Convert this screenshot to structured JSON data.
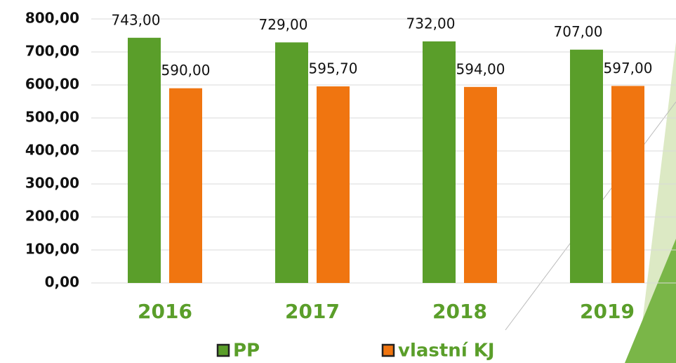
{
  "chart_data": {
    "type": "bar",
    "categories": [
      "2016",
      "2017",
      "2018",
      "2019"
    ],
    "series": [
      {
        "name": "PP",
        "color": "#5a9e2a",
        "values": [
          743,
          729,
          732,
          707
        ],
        "value_labels": [
          "743,00",
          "729,00",
          "732,00",
          "707,00"
        ]
      },
      {
        "name": "vlastní KJ",
        "color": "#f07510",
        "values": [
          590,
          595.7,
          594,
          597
        ],
        "value_labels": [
          "590,00",
          "595,70",
          "594,00",
          "597,00"
        ]
      }
    ],
    "ylim": [
      0,
      800
    ],
    "yticks": [
      {
        "value": 0,
        "label": "0,00"
      },
      {
        "value": 100,
        "label": "100,00"
      },
      {
        "value": 200,
        "label": "200,00"
      },
      {
        "value": 300,
        "label": "300,00"
      },
      {
        "value": 400,
        "label": "400,00"
      },
      {
        "value": 500,
        "label": "500,00"
      },
      {
        "value": 600,
        "label": "600,00"
      },
      {
        "value": 700,
        "label": "700,00"
      },
      {
        "value": 800,
        "label": "800,00"
      }
    ],
    "grid": true
  }
}
